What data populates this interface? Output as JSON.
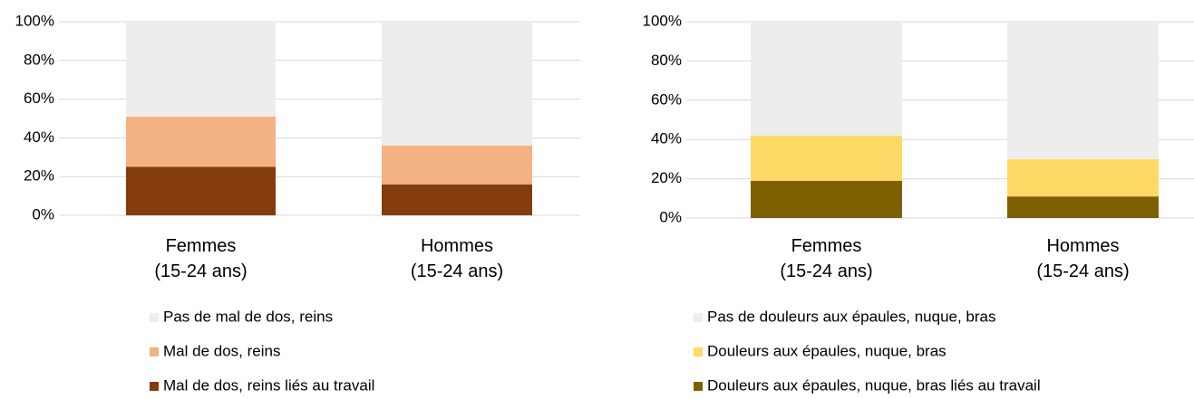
{
  "chart_data": [
    {
      "type": "stacked_bar",
      "categories": [
        "Femmes\n(15-24 ans)",
        "Hommes\n(15-24 ans)"
      ],
      "series": [
        {
          "name": "Pas de mal de dos, reins",
          "color": "#ededed",
          "values": [
            49,
            64
          ]
        },
        {
          "name": "Mal de dos, reins",
          "color": "#f4b183",
          "values": [
            26,
            20
          ]
        },
        {
          "name": "Mal de dos, reins liés au travail",
          "color": "#843c0c",
          "values": [
            25,
            16
          ]
        }
      ],
      "ylim": [
        0,
        100
      ],
      "yticks": [
        {
          "value": 0,
          "label": "0%"
        },
        {
          "value": 20,
          "label": "20%"
        },
        {
          "value": 40,
          "label": "40%"
        },
        {
          "value": 60,
          "label": "60%"
        },
        {
          "value": 80,
          "label": "80%"
        },
        {
          "value": 100,
          "label": "100%"
        }
      ],
      "grid": true
    },
    {
      "type": "stacked_bar",
      "categories": [
        "Femmes\n(15-24 ans)",
        "Hommes\n(15-24 ans)"
      ],
      "series": [
        {
          "name": "Pas de douleurs aux épaules, nuque, bras",
          "color": "#ededed",
          "values": [
            58,
            70
          ]
        },
        {
          "name": "Douleurs aux épaules, nuque, bras",
          "color": "#ffd966",
          "values": [
            23,
            19
          ]
        },
        {
          "name": "Douleurs aux épaules, nuque, bras liés au travail",
          "color": "#7f6000",
          "values": [
            19,
            11
          ]
        }
      ],
      "ylim": [
        0,
        100
      ],
      "yticks": [
        {
          "value": 0,
          "label": "0%"
        },
        {
          "value": 20,
          "label": "20%"
        },
        {
          "value": 40,
          "label": "40%"
        },
        {
          "value": 60,
          "label": "60%"
        },
        {
          "value": 80,
          "label": "80%"
        },
        {
          "value": 100,
          "label": "100%"
        }
      ],
      "grid": true
    }
  ]
}
